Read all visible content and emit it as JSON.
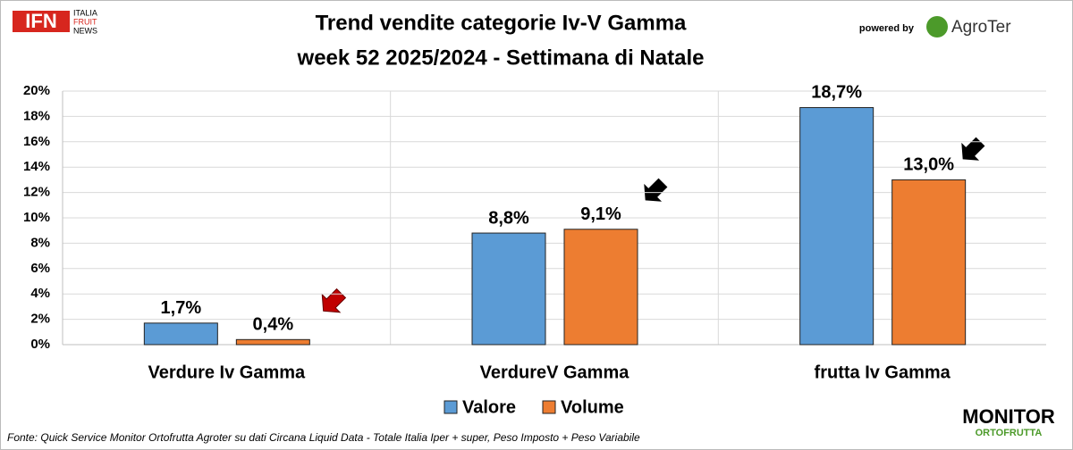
{
  "logo": {
    "brand": "IFN",
    "lines": [
      "ITALIA",
      "FRUIT",
      "NEWS"
    ]
  },
  "powered": {
    "by": "powered by",
    "brand": "AgroTer"
  },
  "footer": {
    "brand": "MONITOR",
    "sub": "ORTOFRUTTA"
  },
  "chart_data": {
    "type": "bar",
    "title": [
      "Trend vendite categorie Iv-V Gamma",
      "week 52 2025/2024 - Settimana di Natale"
    ],
    "categories": [
      "Verdure Iv Gamma",
      "VerdureV Gamma",
      "frutta Iv Gamma"
    ],
    "series": [
      {
        "name": "Valore",
        "color": "#5b9bd5",
        "values": [
          1.7,
          8.8,
          18.7
        ],
        "value_labels": [
          "1,7%",
          "8,8%",
          "18,7%"
        ]
      },
      {
        "name": "Volume",
        "color": "#ed7d31",
        "values": [
          0.4,
          9.1,
          13.0
        ],
        "value_labels": [
          "0,4%",
          "9,1%",
          "13,0%"
        ]
      }
    ],
    "ylim": [
      0,
      20
    ],
    "yticks": [
      {
        "value": 0,
        "label": "0%"
      },
      {
        "value": 2,
        "label": "2%"
      },
      {
        "value": 4,
        "label": "4%"
      },
      {
        "value": 6,
        "label": "6%"
      },
      {
        "value": 8,
        "label": "8%"
      },
      {
        "value": 10,
        "label": "10%"
      },
      {
        "value": 12,
        "label": "12%"
      },
      {
        "value": 14,
        "label": "14%"
      },
      {
        "value": 16,
        "label": "16%"
      },
      {
        "value": 18,
        "label": "18%"
      },
      {
        "value": 20,
        "label": "20%"
      }
    ],
    "grid": true,
    "legend": "bottom",
    "source": "Fonte: Quick Service Monitor Ortofrutta Agroter su dati Circana Liquid Data - Totale Italia Iper + super, Peso Imposto + Peso Variabile"
  }
}
